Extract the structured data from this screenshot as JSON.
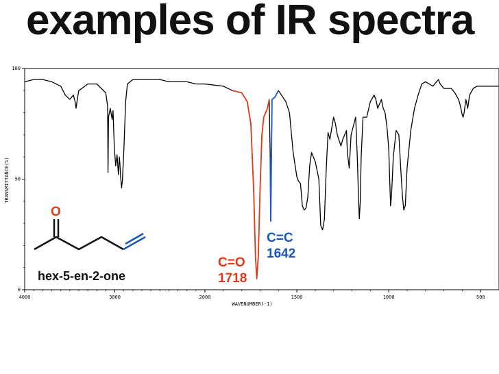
{
  "slide": {
    "title": "examples of IR spectra"
  },
  "molecule": {
    "name": "hex-5-en-2-one",
    "oxygen_label": "O",
    "colors": {
      "carbonyl": "#e03a16",
      "alkene": "#1858b8",
      "bond": "#111111"
    }
  },
  "chart_data": {
    "type": "line",
    "title": "",
    "xlabel": "WAVENUMBER(-1)",
    "ylabel": "TRANSMITTANCE(%)",
    "xlim": [
      4000,
      400
    ],
    "ylim": [
      0,
      100
    ],
    "x_ticks": [
      4000,
      3000,
      2000,
      1500,
      1000,
      500
    ],
    "y_ticks": [
      100,
      50,
      0
    ],
    "grid": false,
    "series": [
      {
        "color": "#000000",
        "points": [
          [
            4000,
            94
          ],
          [
            3900,
            95
          ],
          [
            3800,
            95
          ],
          [
            3700,
            94
          ],
          [
            3600,
            92
          ],
          [
            3550,
            88
          ],
          [
            3500,
            86
          ],
          [
            3460,
            88
          ],
          [
            3440,
            85
          ],
          [
            3430,
            82
          ],
          [
            3420,
            85
          ],
          [
            3400,
            90
          ],
          [
            3300,
            93
          ],
          [
            3200,
            93
          ],
          [
            3100,
            89
          ],
          [
            3080,
            83
          ],
          [
            3075,
            53
          ],
          [
            3070,
            78
          ],
          [
            3050,
            82
          ],
          [
            3030,
            77
          ],
          [
            3020,
            81
          ],
          [
            3005,
            64
          ],
          [
            2990,
            56
          ],
          [
            2975,
            61
          ],
          [
            2960,
            52
          ],
          [
            2950,
            60
          ],
          [
            2945,
            58
          ],
          [
            2935,
            51
          ],
          [
            2925,
            46
          ],
          [
            2915,
            50
          ],
          [
            2900,
            63
          ],
          [
            2880,
            85
          ],
          [
            2860,
            93
          ],
          [
            2800,
            95
          ],
          [
            2700,
            95
          ],
          [
            2600,
            95
          ],
          [
            2500,
            95
          ],
          [
            2400,
            94
          ],
          [
            2300,
            94
          ],
          [
            2200,
            94
          ],
          [
            2100,
            93
          ],
          [
            2000,
            93
          ],
          [
            1900,
            92
          ],
          [
            1850,
            90
          ],
          [
            1800,
            89
          ],
          [
            1770,
            85
          ],
          [
            1750,
            75
          ],
          [
            1735,
            45
          ],
          [
            1725,
            15
          ],
          [
            1718,
            5
          ],
          [
            1710,
            15
          ],
          [
            1700,
            45
          ],
          [
            1690,
            70
          ],
          [
            1680,
            78
          ],
          [
            1670,
            80
          ],
          [
            1660,
            82
          ],
          [
            1650,
            86
          ],
          [
            1645,
            60
          ],
          [
            1642,
            31
          ],
          [
            1639,
            55
          ],
          [
            1635,
            86
          ],
          [
            1620,
            87
          ],
          [
            1600,
            90
          ],
          [
            1560,
            85
          ],
          [
            1540,
            80
          ],
          [
            1520,
            62
          ],
          [
            1500,
            51
          ],
          [
            1490,
            49
          ],
          [
            1480,
            48
          ],
          [
            1470,
            38
          ],
          [
            1460,
            36
          ],
          [
            1450,
            37
          ],
          [
            1440,
            42
          ],
          [
            1430,
            56
          ],
          [
            1420,
            62
          ],
          [
            1400,
            58
          ],
          [
            1380,
            50
          ],
          [
            1370,
            29
          ],
          [
            1360,
            27
          ],
          [
            1350,
            32
          ],
          [
            1340,
            55
          ],
          [
            1330,
            71
          ],
          [
            1320,
            68
          ],
          [
            1300,
            78
          ],
          [
            1290,
            75
          ],
          [
            1280,
            70
          ],
          [
            1260,
            65
          ],
          [
            1250,
            68
          ],
          [
            1240,
            70
          ],
          [
            1230,
            72
          ],
          [
            1225,
            62
          ],
          [
            1215,
            55
          ],
          [
            1205,
            70
          ],
          [
            1180,
            78
          ],
          [
            1170,
            58
          ],
          [
            1165,
            43
          ],
          [
            1160,
            32
          ],
          [
            1155,
            40
          ],
          [
            1150,
            60
          ],
          [
            1140,
            78
          ],
          [
            1120,
            78
          ],
          [
            1100,
            85
          ],
          [
            1080,
            88
          ],
          [
            1070,
            86
          ],
          [
            1060,
            82
          ],
          [
            1050,
            84
          ],
          [
            1040,
            86
          ],
          [
            1030,
            82
          ],
          [
            1020,
            80
          ],
          [
            1010,
            74
          ],
          [
            1000,
            64
          ],
          [
            995,
            50
          ],
          [
            990,
            38
          ],
          [
            985,
            42
          ],
          [
            975,
            60
          ],
          [
            960,
            72
          ],
          [
            945,
            70
          ],
          [
            935,
            55
          ],
          [
            925,
            42
          ],
          [
            918,
            36
          ],
          [
            910,
            38
          ],
          [
            900,
            55
          ],
          [
            880,
            72
          ],
          [
            860,
            82
          ],
          [
            840,
            88
          ],
          [
            820,
            93
          ],
          [
            800,
            94
          ],
          [
            780,
            93
          ],
          [
            760,
            92
          ],
          [
            740,
            94
          ],
          [
            730,
            95
          ],
          [
            720,
            93
          ],
          [
            700,
            91
          ],
          [
            690,
            91
          ],
          [
            680,
            91
          ],
          [
            660,
            91
          ],
          [
            640,
            89
          ],
          [
            620,
            86
          ],
          [
            610,
            83
          ],
          [
            600,
            79
          ],
          [
            595,
            78
          ],
          [
            590,
            80
          ],
          [
            580,
            86
          ],
          [
            570,
            82
          ],
          [
            560,
            88
          ],
          [
            540,
            91
          ],
          [
            520,
            92
          ],
          [
            500,
            92
          ],
          [
            480,
            92
          ],
          [
            460,
            92
          ],
          [
            440,
            92
          ],
          [
            420,
            92
          ],
          [
            400,
            92
          ]
        ]
      }
    ],
    "highlights": [
      {
        "range": [
          1850,
          1650
        ],
        "color": "#e03a16"
      },
      {
        "range": [
          1648,
          1590
        ],
        "color": "#1858b8"
      }
    ],
    "annotations": [
      {
        "name": "carbonyl-annotation",
        "line1": "C=O",
        "line2": "1718",
        "color": "#e03a16"
      },
      {
        "name": "alkene-annotation",
        "line1": "C=C",
        "line2": "1642",
        "color": "#1858b8"
      }
    ]
  }
}
